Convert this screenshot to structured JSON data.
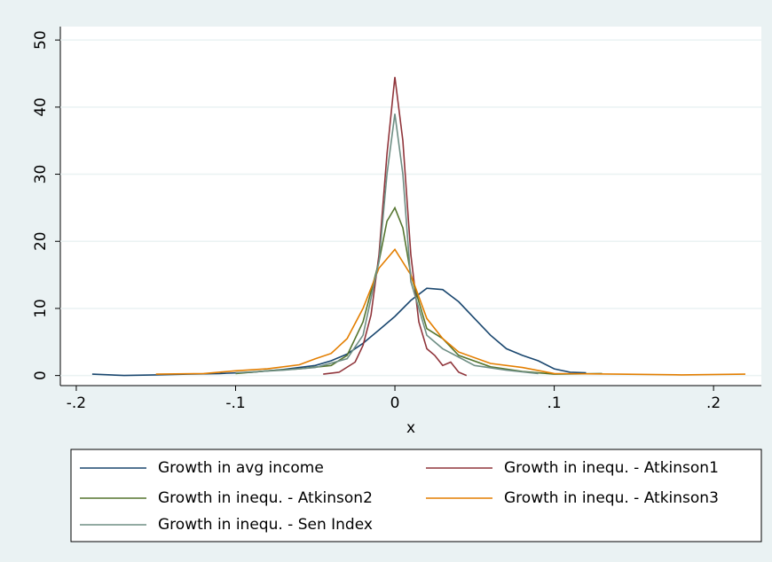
{
  "chart_data": {
    "type": "line",
    "x_label": "x",
    "xlim": [
      -0.21,
      0.23
    ],
    "ylim": [
      -1.5,
      52
    ],
    "xticks": [
      {
        "value": -0.2,
        "label": "-.2"
      },
      {
        "value": -0.1,
        "label": "-.1"
      },
      0,
      {
        "value": 0.1,
        "label": ".1"
      },
      {
        "value": 0.2,
        "label": ".2"
      }
    ],
    "yticks": [
      0,
      10,
      20,
      30,
      40,
      50
    ],
    "grid": true,
    "series": [
      {
        "name": "Growth in avg income",
        "color": "#1a476f",
        "x": [
          -0.19,
          -0.17,
          -0.15,
          -0.13,
          -0.11,
          -0.09,
          -0.07,
          -0.05,
          -0.04,
          -0.03,
          -0.02,
          -0.01,
          0,
          0.01,
          0.02,
          0.03,
          0.04,
          0.05,
          0.06,
          0.07,
          0.08,
          0.09,
          0.1,
          0.11,
          0.12
        ],
        "values": [
          0.2,
          0,
          0.1,
          0.2,
          0.3,
          0.5,
          0.9,
          1.5,
          2.2,
          3.2,
          4.8,
          6.8,
          8.8,
          11.2,
          13,
          12.8,
          11,
          8.5,
          6,
          4,
          3,
          2.2,
          1,
          0.5,
          0.4
        ]
      },
      {
        "name": "Growth in inequ. - Atkinson1",
        "color": "#90353b",
        "x": [
          -0.045,
          -0.035,
          -0.025,
          -0.02,
          -0.015,
          -0.01,
          -0.005,
          0,
          0.005,
          0.01,
          0.015,
          0.02,
          0.025,
          0.03,
          0.035,
          0.04,
          0.045
        ],
        "values": [
          0.2,
          0.5,
          2,
          4.5,
          9,
          18,
          33,
          44.5,
          35,
          18,
          8,
          4,
          3,
          1.5,
          2,
          0.5,
          0
        ]
      },
      {
        "name": "Growth in inequ. - Atkinson2",
        "color": "#55752f",
        "x": [
          -0.1,
          -0.08,
          -0.06,
          -0.04,
          -0.03,
          -0.02,
          -0.01,
          -0.005,
          0,
          0.005,
          0.01,
          0.02,
          0.03,
          0.04,
          0.06,
          0.08,
          0.1,
          0.13
        ],
        "values": [
          0.3,
          0.7,
          1,
          1.5,
          3,
          8,
          17,
          23,
          25,
          22,
          15,
          7,
          5.5,
          3,
          1.3,
          0.6,
          0.2,
          0.3
        ]
      },
      {
        "name": "Growth in inequ. - Atkinson3",
        "color": "#e37e00",
        "x": [
          -0.15,
          -0.12,
          -0.1,
          -0.08,
          -0.06,
          -0.05,
          -0.04,
          -0.03,
          -0.02,
          -0.01,
          0,
          0.01,
          0.02,
          0.03,
          0.04,
          0.06,
          0.08,
          0.1,
          0.14,
          0.18,
          0.22
        ],
        "values": [
          0.2,
          0.3,
          0.7,
          1,
          1.6,
          2.5,
          3.3,
          5.5,
          10,
          16,
          18.8,
          15,
          8.5,
          5.5,
          3.5,
          1.8,
          1.2,
          0.3,
          0.2,
          0.1,
          0.2
        ]
      },
      {
        "name": "Growth in inequ. - Sen Index",
        "color": "#6e8e84",
        "x": [
          -0.1,
          -0.07,
          -0.05,
          -0.03,
          -0.02,
          -0.01,
          -0.005,
          0,
          0.005,
          0.01,
          0.02,
          0.03,
          0.05,
          0.07,
          0.09
        ],
        "values": [
          0.4,
          0.8,
          1.2,
          2.5,
          6,
          17,
          30,
          39,
          30,
          14,
          6,
          4,
          1.5,
          0.8,
          0.3
        ]
      }
    ]
  }
}
